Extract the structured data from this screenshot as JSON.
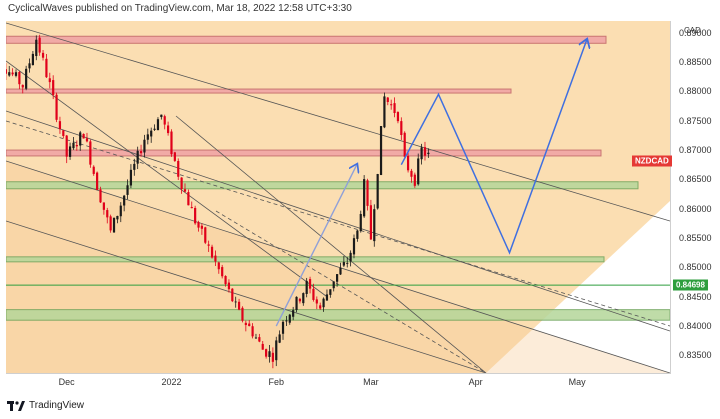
{
  "header": {
    "publisher_text": "CyclicalWaves published on TradingView.com, Mar 18, 2022 12:58 UTC+3:30"
  },
  "footer": {
    "brand": "TradingView"
  },
  "colors": {
    "background": "#ffffff",
    "channel_fill": "#fbdcae",
    "candle_up": "#1a1a1a",
    "candle_down": "#e0001a",
    "resistance_zone": "#f0a5a5",
    "support_zone": "#b5d69a",
    "projection": "#3f6fe0",
    "trendline": "#555555",
    "level_line": "#2e9e3e"
  },
  "chart_data": {
    "type": "candlestick",
    "symbol": "NZDCAD",
    "currency": "CAD",
    "x_ticks": [
      "Dec",
      "2022",
      "Feb",
      "Mar",
      "Apr",
      "May"
    ],
    "y_ticks": [
      "0.89000",
      "0.88500",
      "0.88000",
      "0.87500",
      "0.87000",
      "0.86500",
      "0.86000",
      "0.85500",
      "0.85000",
      "0.84500",
      "0.84000",
      "0.83500"
    ],
    "ylim": [
      0.832,
      0.892
    ],
    "last_price_label": "NZDCAD",
    "level_line": {
      "value": 0.84698,
      "label": "0.84698"
    },
    "price_path": [
      [
        "Nov 08",
        0.888
      ],
      [
        "Nov 13",
        0.884
      ],
      [
        "Nov 18",
        0.881
      ],
      [
        "Nov 22",
        0.889
      ],
      [
        "Nov 26",
        0.881
      ],
      [
        "Dec 01",
        0.869
      ],
      [
        "Dec 06",
        0.873
      ],
      [
        "Dec 10",
        0.864
      ],
      [
        "Dec 14",
        0.856
      ],
      [
        "Dec 19",
        0.864
      ],
      [
        "Dec 24",
        0.872
      ],
      [
        "Dec 29",
        0.876
      ],
      [
        "Jan 03",
        0.866
      ],
      [
        "Jan 08",
        0.858
      ],
      [
        "Jan 13",
        0.852
      ],
      [
        "Jan 17",
        0.847
      ],
      [
        "Jan 21",
        0.842
      ],
      [
        "Jan 25",
        0.839
      ],
      [
        "Jan 28",
        0.836
      ],
      [
        "Jan 31",
        0.835
      ],
      [
        "Feb 03",
        0.841
      ],
      [
        "Feb 07",
        0.844
      ],
      [
        "Feb 10",
        0.847
      ],
      [
        "Feb 14",
        0.843
      ],
      [
        "Feb 18",
        0.848
      ],
      [
        "Feb 22",
        0.851
      ],
      [
        "Feb 25",
        0.856
      ],
      [
        "Feb 27",
        0.864
      ],
      [
        "Mar 01",
        0.855
      ],
      [
        "Mar 05",
        0.879
      ],
      [
        "Mar 09",
        0.876
      ],
      [
        "Mar 11",
        0.868
      ],
      [
        "Mar 14",
        0.865
      ],
      [
        "Mar 16",
        0.87
      ],
      [
        "Mar 18",
        0.869
      ]
    ],
    "resistance_zones": [
      {
        "low": 0.8882,
        "high": 0.8894
      },
      {
        "low": 0.8798,
        "high": 0.8804
      },
      {
        "low": 0.869,
        "high": 0.87
      }
    ],
    "support_zones": [
      {
        "low": 0.8634,
        "high": 0.8646
      },
      {
        "low": 0.8511,
        "high": 0.8518
      },
      {
        "low": 0.841,
        "high": 0.8428
      }
    ],
    "projection_path": [
      [
        "Mar 10",
        0.8675
      ],
      [
        "Mar 21",
        0.8795
      ],
      [
        "Apr 11",
        0.8525
      ],
      [
        "May 04",
        0.889
      ]
    ],
    "projection_arrow": [
      [
        "Feb 01",
        0.84
      ],
      [
        "Feb 25",
        0.8677
      ]
    ]
  }
}
